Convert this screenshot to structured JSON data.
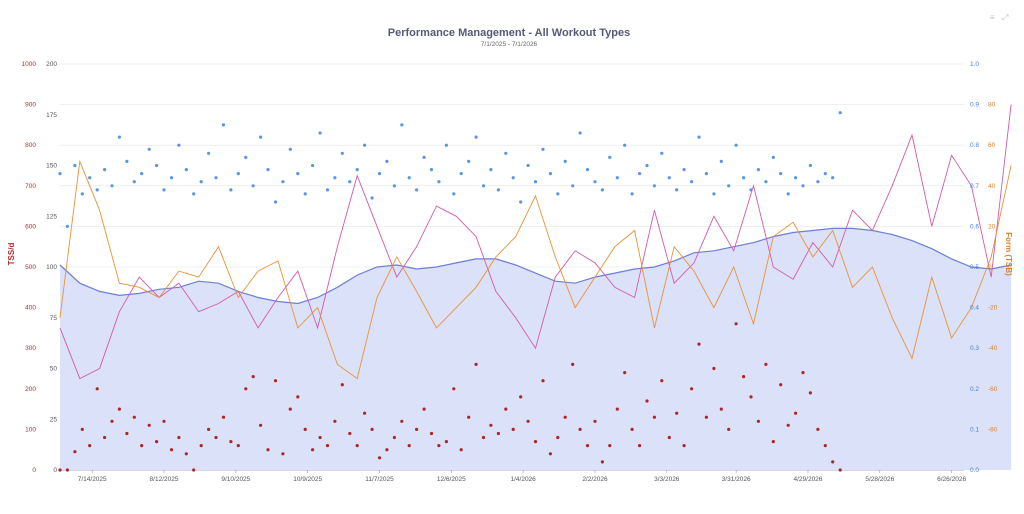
{
  "toolbar": {
    "menu_icon": "menu-icon",
    "expand_icon": "expand-icon",
    "menu_glyph": "≡",
    "expand_glyph": "⤢"
  },
  "chart_data": {
    "type": "line",
    "title": "Performance Management - All Workout Types",
    "subtitle": "7/1/2025 - 7/1/2026",
    "x_tick_labels": [
      "7/14/2025",
      "8/12/2025",
      "9/10/2025",
      "10/9/2025",
      "11/7/2025",
      "12/6/2025",
      "1/4/2026",
      "2/2/2026",
      "3/3/2026",
      "3/31/2026",
      "4/29/2026",
      "5/28/2026",
      "6/26/2026"
    ],
    "x_tick_days": [
      13,
      42,
      71,
      100,
      129,
      158,
      187,
      216,
      245,
      273,
      302,
      331,
      360
    ],
    "x_range_days": [
      0,
      365
    ],
    "axes": {
      "tss_per_day": {
        "label": "TSS/d",
        "range": [
          0,
          1000
        ],
        "ticks": [
          "0",
          "100",
          "200",
          "300",
          "400",
          "500",
          "600",
          "700",
          "800",
          "900",
          "1000"
        ],
        "color": "#b03030"
      },
      "fitness": {
        "label": "",
        "range": [
          0,
          200
        ],
        "ticks": [
          "0",
          "25",
          "50",
          "75",
          "100",
          "125",
          "150",
          "175",
          "200"
        ],
        "color": "#555555"
      },
      "intensity_factor": {
        "label": "",
        "range": [
          0,
          1
        ],
        "ticks": [
          "0.0",
          "0.1",
          "0.2",
          "0.3",
          "0.4",
          "0.5",
          "0.6",
          "0.7",
          "0.8",
          "0.9",
          "1.0"
        ],
        "color": "#4a7fd0"
      },
      "form": {
        "label": "Form (TSB)",
        "range": [
          -100,
          100
        ],
        "ticks": [
          "-80",
          "-60",
          "-40",
          "-20",
          "0",
          "20",
          "40",
          "60",
          "80"
        ],
        "tick_values": [
          -80,
          -60,
          -40,
          -20,
          0,
          20,
          40,
          60,
          80
        ],
        "color": "#d9822b"
      }
    },
    "grid": true,
    "colors": {
      "fitness_fill": "#dbe1f8",
      "fitness_line": "#6b7fd6",
      "fatigue": "#d45aa8",
      "form": "#e8913a",
      "tss_dots": "#a82828",
      "if_dots": "#5b95e0"
    },
    "series": [
      {
        "key": "fitness",
        "axis": "fitness",
        "style": "area",
        "x_step_days": 8,
        "values": [
          101,
          92,
          88,
          86,
          87,
          89,
          90,
          93,
          92,
          88,
          85,
          83,
          82,
          85,
          90,
          96,
          100,
          101,
          99,
          100,
          102,
          104,
          104,
          101,
          97,
          93,
          92,
          95,
          97,
          99,
          100,
          103,
          107,
          108,
          110,
          112,
          115,
          117,
          118,
          119,
          119,
          118,
          116,
          113,
          109,
          104,
          100,
          99,
          101
        ]
      },
      {
        "key": "fatigue",
        "axis": "fitness",
        "style": "line",
        "x_step_days": 8,
        "values": [
          70,
          45,
          50,
          78,
          95,
          85,
          92,
          78,
          82,
          88,
          70,
          85,
          98,
          70,
          110,
          145,
          120,
          95,
          110,
          130,
          125,
          115,
          88,
          75,
          60,
          95,
          108,
          102,
          90,
          85,
          128,
          92,
          102,
          125,
          108,
          140,
          100,
          94,
          112,
          100,
          128,
          118,
          140,
          165,
          120,
          155,
          140,
          95,
          180
        ]
      },
      {
        "key": "form",
        "axis": "form",
        "style": "line",
        "x_step_days": 8,
        "values": [
          -25,
          52,
          28,
          -8,
          -10,
          -15,
          -2,
          -5,
          10,
          -15,
          -2,
          3,
          -30,
          -20,
          -48,
          -55,
          -15,
          5,
          -12,
          -30,
          -20,
          -10,
          5,
          15,
          35,
          5,
          -20,
          -5,
          10,
          18,
          -30,
          10,
          -2,
          -20,
          0,
          -28,
          15,
          22,
          5,
          18,
          -10,
          0,
          -25,
          -45,
          -5,
          -35,
          -20,
          5,
          50
        ]
      },
      {
        "key": "tss_per_day",
        "axis": "tss_per_day",
        "style": "dots",
        "x_step_days": 3,
        "values": [
          0,
          0,
          45,
          100,
          60,
          200,
          80,
          120,
          150,
          90,
          130,
          60,
          110,
          70,
          120,
          50,
          80,
          40,
          0,
          60,
          100,
          80,
          130,
          70,
          60,
          200,
          230,
          110,
          50,
          220,
          40,
          150,
          180,
          100,
          50,
          80,
          60,
          120,
          210,
          90,
          60,
          140,
          100,
          30,
          50,
          80,
          120,
          60,
          100,
          150,
          90,
          60,
          70,
          200,
          50,
          130,
          260,
          80,
          110,
          90,
          150,
          100,
          180,
          120,
          70,
          220,
          40,
          80,
          130,
          260,
          100,
          60,
          120,
          20,
          60,
          150,
          240,
          100,
          60,
          170,
          130,
          220,
          80,
          140,
          60,
          200,
          310,
          130,
          250,
          150,
          100,
          360,
          230,
          180,
          120,
          260,
          70,
          210,
          110,
          140,
          240,
          190,
          100,
          60,
          20,
          0
        ]
      },
      {
        "key": "intensity_factor",
        "axis": "intensity_factor",
        "style": "dots",
        "x_step_days": 3,
        "values": [
          0.73,
          0.6,
          0.75,
          0.68,
          0.72,
          0.69,
          0.74,
          0.7,
          0.82,
          0.76,
          0.71,
          0.73,
          0.79,
          0.75,
          0.69,
          0.72,
          0.8,
          0.74,
          0.68,
          0.71,
          0.78,
          0.72,
          0.85,
          0.69,
          0.73,
          0.77,
          0.7,
          0.82,
          0.74,
          0.66,
          0.71,
          0.79,
          0.73,
          0.68,
          0.75,
          0.83,
          0.69,
          0.72,
          0.78,
          0.71,
          0.74,
          0.8,
          0.67,
          0.73,
          0.76,
          0.7,
          0.85,
          0.72,
          0.69,
          0.77,
          0.74,
          0.71,
          0.8,
          0.68,
          0.73,
          0.76,
          0.82,
          0.7,
          0.74,
          0.69,
          0.78,
          0.72,
          0.66,
          0.75,
          0.71,
          0.79,
          0.73,
          0.68,
          0.76,
          0.7,
          0.83,
          0.74,
          0.71,
          0.69,
          0.77,
          0.72,
          0.8,
          0.68,
          0.73,
          0.75,
          0.7,
          0.78,
          0.72,
          0.69,
          0.74,
          0.71,
          0.82,
          0.73,
          0.68,
          0.76,
          0.7,
          0.8,
          0.72,
          0.69,
          0.74,
          0.71,
          0.77,
          0.73,
          0.68,
          0.72,
          0.7,
          0.75,
          0.71,
          0.73,
          0.72,
          0.88
        ]
      }
    ]
  }
}
